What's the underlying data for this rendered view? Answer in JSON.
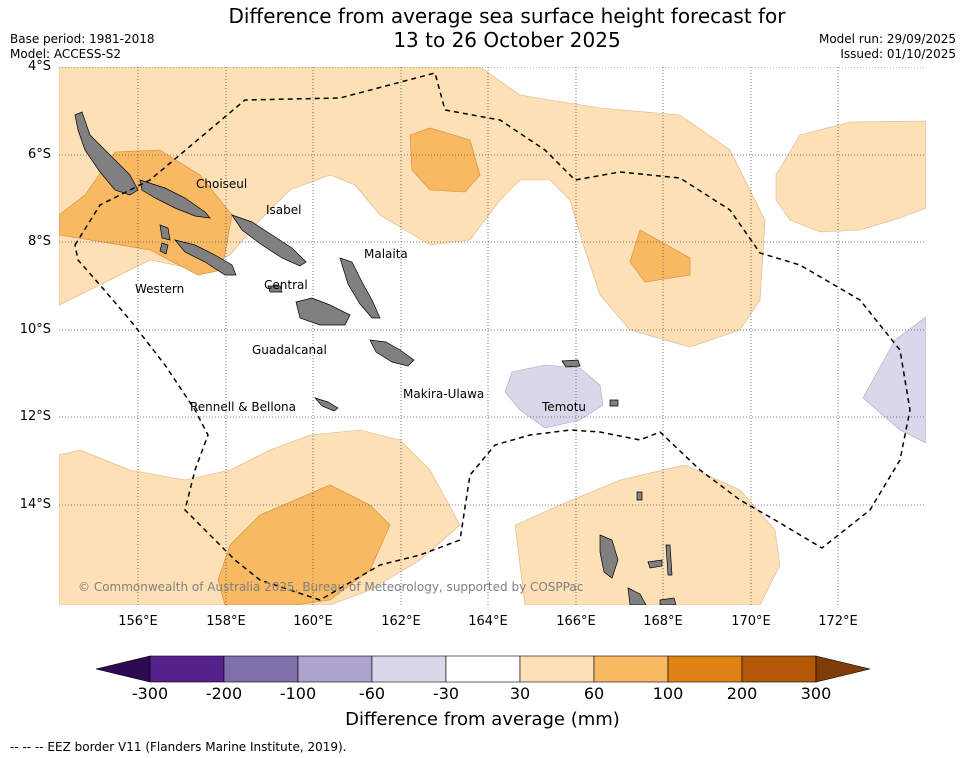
{
  "title": {
    "line1": "Difference from average sea surface height forecast for",
    "line2": "13 to 26 October 2025"
  },
  "meta": {
    "base_period": "Base period: 1981-2018",
    "model": "Model: ACCESS-S2",
    "model_run": "Model run: 29/09/2025",
    "issued": "Issued: 01/10/2025"
  },
  "map": {
    "lat_ticks": [
      "4°S",
      "6°S",
      "8°S",
      "10°S",
      "12°S",
      "14°S"
    ],
    "lon_ticks": [
      "156°E",
      "158°E",
      "160°E",
      "162°E",
      "164°E",
      "166°E",
      "168°E",
      "170°E",
      "172°E"
    ],
    "places": [
      "Choiseul",
      "Isabel",
      "Malaita",
      "Western",
      "Central",
      "Guadalcanal",
      "Makira-Ulawa",
      "Rennell & Bellona",
      "Temotu"
    ],
    "copyright": "© Commonwealth of Australia 2025, Bureau of Meteorology, supported by COSPPac",
    "colors": {
      "land": "#808080",
      "sea": "#ffffff",
      "light_orange": "#fde0b6",
      "mid_orange": "#f9b862",
      "light_purple": "#d8d8ea",
      "eez": "#000000"
    }
  },
  "colorbar": {
    "labels": [
      "-300",
      "-200",
      "-100",
      "-60",
      "-30",
      "30",
      "60",
      "100",
      "200",
      "300"
    ],
    "colors": [
      "#2d0b53",
      "#55218a",
      "#7f6fab",
      "#aca4cf",
      "#d8d8ea",
      "#ffffff",
      "#fde0b6",
      "#f9b862",
      "#e08214",
      "#b35806",
      "#7f3b08"
    ],
    "title": "Difference from average (mm)"
  },
  "footnote": "-- -- -- EEZ border V11 (Flanders Marine Institute, 2019)."
}
